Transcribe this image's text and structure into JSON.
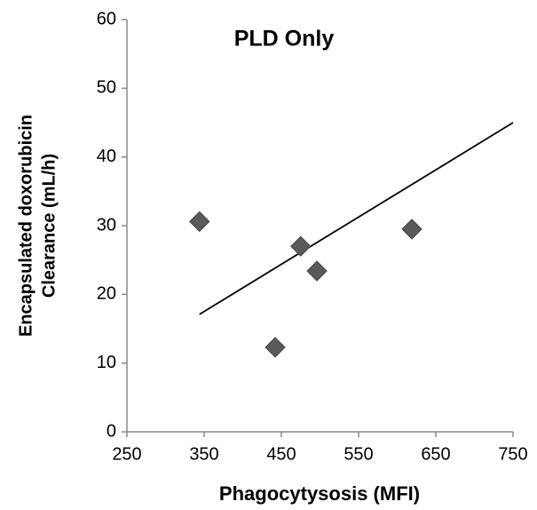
{
  "chart_data": {
    "type": "scatter",
    "title": "PLD Only",
    "x_label": "Phagocytysosis (MFI)",
    "y_label": [
      "Encapsulated doxorubicin",
      "Clearance (mL/h)"
    ],
    "x": [
      344,
      442,
      475,
      496,
      619
    ],
    "values": [
      30.6,
      12.3,
      27.0,
      23.4,
      29.5
    ],
    "color": "#5a5a5a",
    "trendline": {
      "x": [
        344,
        750
      ],
      "y": [
        17.1,
        45.0
      ],
      "color": "#000000"
    },
    "xlim": [
      250,
      750
    ],
    "xticks": [
      250,
      350,
      450,
      550,
      650,
      750
    ],
    "ylim": [
      0,
      60
    ],
    "yticks": [
      0,
      10,
      20,
      30,
      40,
      50,
      60
    ],
    "grid": false
  }
}
